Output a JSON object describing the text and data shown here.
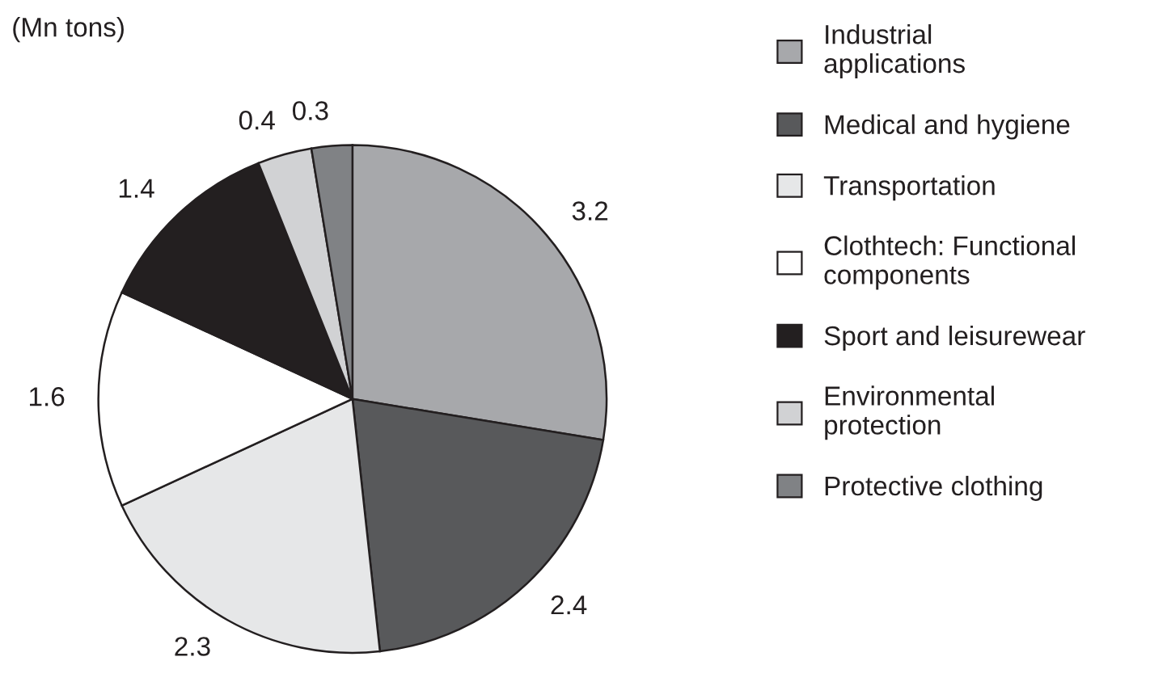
{
  "chart_data": {
    "type": "pie",
    "categories": [
      "Industrial\napplications",
      "Medical and hygiene",
      "Transportation",
      "Clothtech: Functional\ncomponents",
      "Sport and leisurewear",
      "Environmental\nprotection",
      "Protective clothing"
    ],
    "values": [
      3.2,
      2.4,
      2.3,
      1.6,
      1.4,
      0.4,
      0.3
    ],
    "colors": [
      "#a7a8ab",
      "#58595b",
      "#e6e7e8",
      "#ffffff",
      "#231f20",
      "#d1d2d4",
      "#808285"
    ],
    "data_labels": true,
    "legend": "right",
    "annotations": [
      "(Mn tons)"
    ]
  }
}
